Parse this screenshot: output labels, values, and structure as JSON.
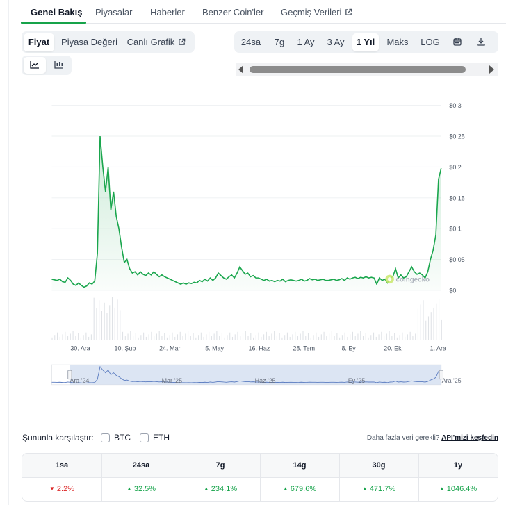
{
  "nav": {
    "tabs": [
      {
        "label": "Genel Bakış",
        "active": true
      },
      {
        "label": "Piyasalar"
      },
      {
        "label": "Haberler"
      },
      {
        "label": "Benzer Coin'ler"
      },
      {
        "label": "Geçmiş Verileri",
        "external": true
      }
    ]
  },
  "chart_type_tabs": [
    "Fiyat",
    "Piyasa Değeri",
    "Canlı Grafik"
  ],
  "view_icons": [
    "line-chart-icon",
    "candlestick-icon"
  ],
  "ranges": [
    "24sa",
    "7g",
    "1 Ay",
    "3 Ay",
    "1 Yıl",
    "Maks",
    "LOG"
  ],
  "active_range": "1 Yıl",
  "tool_icons": [
    "calendar-icon",
    "download-icon"
  ],
  "colors": {
    "accent": "#16a34a",
    "line": "#1aa64d",
    "volume": "#d1d5db",
    "navigator": "#bfd0ea",
    "red": "#dc2626"
  },
  "watermark": "coingecko",
  "chart_data": {
    "type": "line",
    "y_ticks": [
      "$0,3",
      "$0,25",
      "$0,2",
      "$0,15",
      "$0,1",
      "$0,05",
      "$0"
    ],
    "ylim": [
      0,
      0.3
    ],
    "x_ticks": [
      "30. Ara",
      "10. Şub",
      "24. Mar",
      "5. May",
      "16. Haz",
      "28. Tem",
      "8. Ey",
      "20. Eki",
      "1. Ara"
    ],
    "navigator_ticks": [
      "Ara '24",
      "Mar '25",
      "Haz '25",
      "Ey '25",
      "Ara '25"
    ],
    "series": [
      {
        "values": [
          0.018,
          0.017,
          0.016,
          0.018,
          0.014,
          0.013,
          0.02,
          0.016,
          0.01,
          0.008,
          0.012,
          0.008,
          0.005,
          0.007,
          0.012,
          0.01,
          0.015,
          0.06,
          0.25,
          0.2,
          0.16,
          0.2,
          0.13,
          0.16,
          0.12,
          0.1,
          0.07,
          0.045,
          0.05,
          0.035,
          0.028,
          0.03,
          0.025,
          0.03,
          0.026,
          0.024,
          0.028,
          0.025,
          0.03,
          0.026,
          0.022,
          0.025,
          0.022,
          0.02,
          0.018,
          0.016,
          0.014,
          0.012,
          0.01,
          0.012,
          0.01,
          0.012,
          0.011,
          0.013,
          0.012,
          0.016,
          0.014,
          0.018,
          0.015,
          0.02,
          0.016,
          0.02,
          0.028,
          0.024,
          0.02,
          0.018,
          0.022,
          0.025,
          0.02,
          0.028,
          0.038,
          0.032,
          0.026,
          0.028,
          0.022,
          0.024,
          0.02,
          0.02,
          0.018,
          0.016,
          0.018,
          0.015,
          0.016,
          0.014,
          0.016,
          0.015,
          0.018,
          0.014,
          0.016,
          0.017,
          0.016,
          0.015,
          0.016,
          0.018,
          0.015,
          0.016,
          0.019,
          0.017,
          0.018,
          0.016,
          0.017,
          0.018,
          0.016,
          0.016,
          0.017,
          0.018,
          0.016,
          0.017,
          0.019,
          0.016,
          0.02,
          0.018,
          0.02,
          0.021,
          0.019,
          0.021,
          0.02,
          0.022,
          0.02,
          0.021,
          0.02,
          0.01,
          0.02,
          0.016,
          0.018,
          0.012,
          0.02,
          0.022,
          0.035,
          0.02,
          0.025,
          0.02,
          0.022,
          0.03,
          0.038,
          0.03,
          0.026,
          0.028,
          0.025,
          0.02,
          0.03,
          0.05,
          0.065,
          0.09,
          0.18,
          0.198
        ]
      }
    ],
    "grid": true,
    "legend": "none"
  },
  "compare": {
    "label": "Şununla karşılaştır:",
    "options": [
      "BTC",
      "ETH"
    ]
  },
  "more": {
    "text": "Daha fazla veri gerekli?",
    "link": "API'mizi keşfedin"
  },
  "performance": {
    "headers": [
      "1sa",
      "24sa",
      "7g",
      "14g",
      "30g",
      "1y"
    ],
    "values": [
      {
        "text": "2.2%",
        "dir": "down"
      },
      {
        "text": "32.5%",
        "dir": "up"
      },
      {
        "text": "234.1%",
        "dir": "up"
      },
      {
        "text": "679.6%",
        "dir": "up"
      },
      {
        "text": "471.7%",
        "dir": "up"
      },
      {
        "text": "1046.4%",
        "dir": "up"
      }
    ]
  }
}
